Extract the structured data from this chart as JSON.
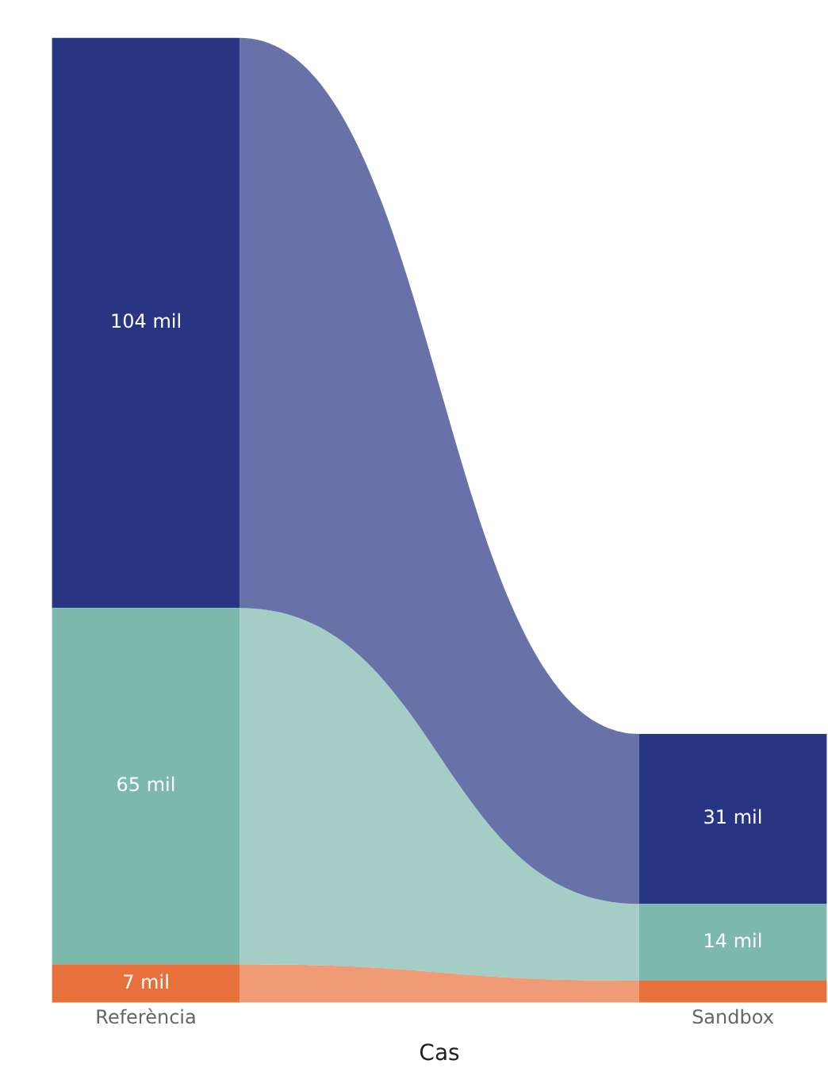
{
  "chart_data": {
    "type": "bar",
    "stacked": true,
    "xlabel": "Cas",
    "categories": [
      "Referència",
      "Sandbox"
    ],
    "legend": false,
    "grid": false,
    "series": [
      {
        "color": "#e8703a",
        "values": [
          7,
          4
        ],
        "value_labels": [
          "7 mil",
          null
        ]
      },
      {
        "color": "#7db8ad",
        "values": [
          65,
          14
        ],
        "value_labels": [
          "65 mil",
          "14 mil"
        ]
      },
      {
        "color": "#283583",
        "values": [
          104,
          31
        ],
        "value_labels": [
          "104 mil",
          "31 mil"
        ]
      }
    ]
  }
}
